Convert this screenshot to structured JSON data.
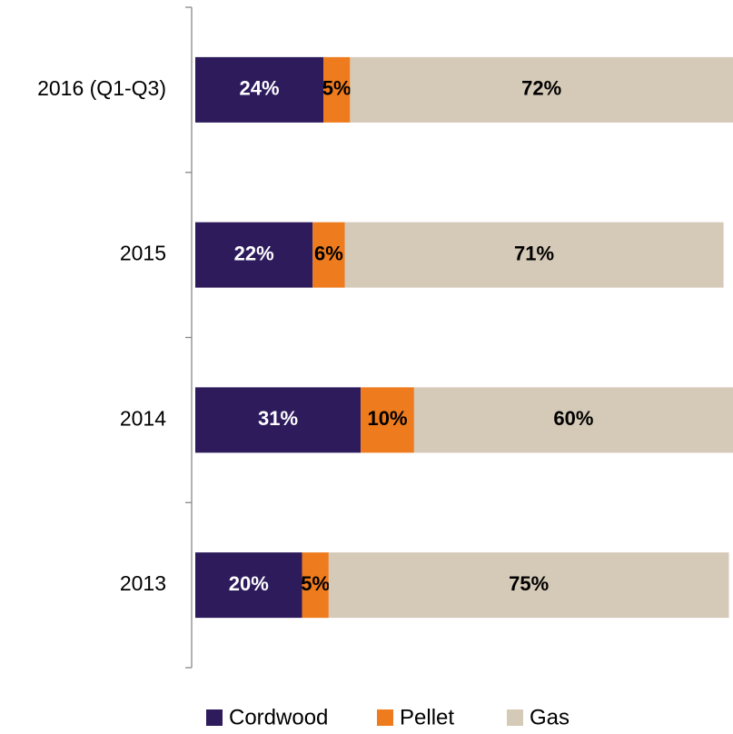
{
  "chart_data": {
    "type": "stacked_bar_horizontal",
    "categories": [
      "2016 (Q1-Q3)",
      "2015",
      "2014",
      "2013"
    ],
    "xlim": [
      0,
      100
    ],
    "series": [
      {
        "name": "Cordwood",
        "color": "#2d1b5c",
        "values": [
          24,
          22,
          31,
          20
        ],
        "value_labels": [
          "24%",
          "22%",
          "31%",
          "20%"
        ]
      },
      {
        "name": "Pellet",
        "color": "#ee7b1e",
        "values": [
          5,
          6,
          10,
          5
        ],
        "value_labels": [
          "5%",
          "6%",
          "10%",
          "5%"
        ]
      },
      {
        "name": "Gas",
        "color": "#d5c9b7",
        "values": [
          72,
          71,
          60,
          75
        ],
        "value_labels": [
          "72%",
          "71%",
          "60%",
          "75%"
        ]
      }
    ]
  }
}
